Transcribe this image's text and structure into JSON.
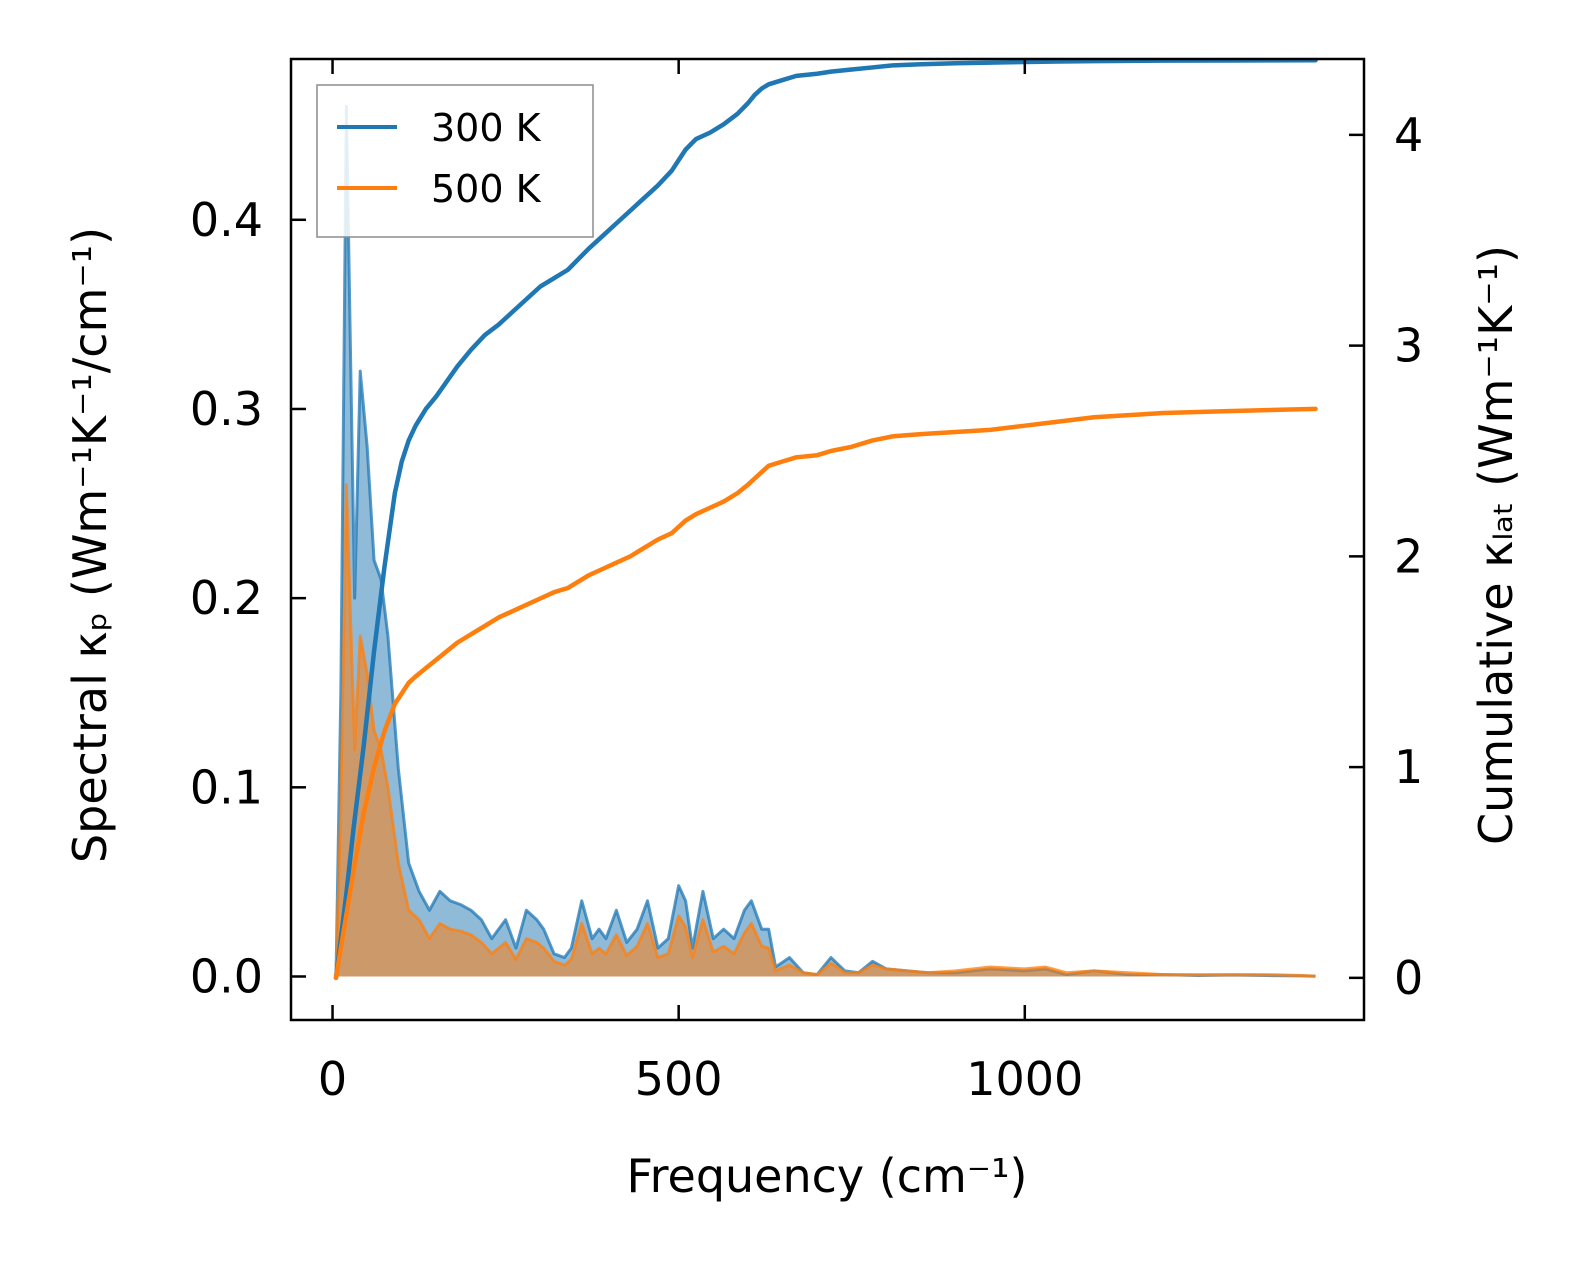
{
  "chart_data": {
    "type": "area",
    "xlabel": "Frequency (cm⁻¹)",
    "ylabel_left": "Spectral κₚ (Wm⁻¹K⁻¹/cm⁻¹)",
    "ylabel_right": "Cumulative κₗₐₜ (Wm⁻¹K⁻¹)",
    "xlim": [
      -60,
      1490
    ],
    "ylim_left": [
      -0.023,
      0.485
    ],
    "ylim_right": [
      -0.2,
      4.36
    ],
    "x_ticks": [
      0,
      500,
      1000
    ],
    "x_tick_labels": [
      "0",
      "500",
      "1000"
    ],
    "y_left_ticks": [
      0.0,
      0.1,
      0.2,
      0.3,
      0.4
    ],
    "y_left_tick_labels": [
      "0.0",
      "0.1",
      "0.2",
      "0.3",
      "0.4"
    ],
    "y_right_ticks": [
      0,
      1,
      2,
      3,
      4
    ],
    "y_right_tick_labels": [
      "0",
      "1",
      "2",
      "3",
      "4"
    ],
    "legend": {
      "position": "top-left",
      "entries": [
        "300 K",
        "500 K"
      ]
    },
    "series": [
      {
        "name": "300 K",
        "color": "#1f77b4",
        "spectral": {
          "x": [
            5,
            12,
            20,
            25,
            32,
            40,
            50,
            60,
            70,
            80,
            95,
            110,
            125,
            140,
            155,
            170,
            185,
            200,
            215,
            230,
            250,
            265,
            280,
            295,
            305,
            320,
            335,
            345,
            360,
            375,
            385,
            395,
            410,
            425,
            440,
            455,
            470,
            485,
            500,
            510,
            520,
            535,
            550,
            565,
            580,
            595,
            605,
            620,
            630,
            640,
            660,
            680,
            700,
            720,
            740,
            760,
            780,
            800,
            830,
            860,
            900,
            950,
            1000,
            1030,
            1060,
            1100,
            1150,
            1200,
            1250,
            1300,
            1350,
            1400,
            1420
          ],
          "y": [
            0.0,
            0.15,
            0.46,
            0.35,
            0.2,
            0.32,
            0.28,
            0.22,
            0.21,
            0.18,
            0.11,
            0.06,
            0.045,
            0.035,
            0.045,
            0.04,
            0.038,
            0.035,
            0.03,
            0.02,
            0.03,
            0.015,
            0.035,
            0.03,
            0.025,
            0.012,
            0.01,
            0.015,
            0.04,
            0.02,
            0.025,
            0.02,
            0.035,
            0.018,
            0.025,
            0.04,
            0.015,
            0.02,
            0.048,
            0.04,
            0.015,
            0.045,
            0.02,
            0.025,
            0.02,
            0.035,
            0.04,
            0.025,
            0.025,
            0.005,
            0.01,
            0.002,
            0.001,
            0.01,
            0.003,
            0.002,
            0.008,
            0.004,
            0.003,
            0.002,
            0.002,
            0.004,
            0.003,
            0.004,
            0.001,
            0.003,
            0.001,
            0.001,
            0.0005,
            0.0008,
            0.0005,
            0.0003,
            0.0001
          ]
        },
        "cumulative": {
          "x": [
            5,
            20,
            30,
            45,
            60,
            75,
            90,
            100,
            110,
            120,
            135,
            150,
            165,
            180,
            200,
            220,
            240,
            260,
            280,
            300,
            320,
            340,
            355,
            370,
            390,
            410,
            430,
            450,
            470,
            490,
            500,
            510,
            525,
            545,
            565,
            585,
            600,
            610,
            620,
            630,
            650,
            670,
            700,
            720,
            750,
            780,
            810,
            850,
            900,
            950,
            1000,
            1050,
            1100,
            1150,
            1200,
            1300,
            1420
          ],
          "y": [
            0.0,
            0.4,
            0.7,
            1.1,
            1.55,
            1.95,
            2.3,
            2.45,
            2.55,
            2.62,
            2.7,
            2.76,
            2.83,
            2.9,
            2.98,
            3.05,
            3.1,
            3.16,
            3.22,
            3.28,
            3.32,
            3.36,
            3.41,
            3.46,
            3.52,
            3.58,
            3.64,
            3.7,
            3.76,
            3.83,
            3.88,
            3.93,
            3.98,
            4.01,
            4.05,
            4.1,
            4.15,
            4.19,
            4.22,
            4.24,
            4.26,
            4.28,
            4.29,
            4.3,
            4.31,
            4.32,
            4.33,
            4.335,
            4.34,
            4.343,
            4.346,
            4.348,
            4.35,
            4.351,
            4.352,
            4.353,
            4.354
          ]
        }
      },
      {
        "name": "500 K",
        "color": "#ff7f0e",
        "spectral": {
          "x": [
            5,
            12,
            20,
            25,
            32,
            40,
            50,
            60,
            70,
            80,
            95,
            110,
            125,
            140,
            155,
            170,
            185,
            200,
            215,
            230,
            250,
            265,
            280,
            295,
            305,
            320,
            335,
            345,
            360,
            375,
            385,
            395,
            410,
            425,
            440,
            455,
            470,
            485,
            500,
            510,
            520,
            535,
            550,
            565,
            580,
            595,
            605,
            620,
            630,
            640,
            660,
            680,
            700,
            720,
            740,
            760,
            780,
            800,
            830,
            860,
            900,
            950,
            1000,
            1030,
            1060,
            1100,
            1150,
            1200,
            1250,
            1300,
            1350,
            1400,
            1420
          ],
          "y": [
            0.0,
            0.09,
            0.26,
            0.2,
            0.12,
            0.18,
            0.16,
            0.13,
            0.12,
            0.1,
            0.06,
            0.035,
            0.03,
            0.02,
            0.028,
            0.025,
            0.024,
            0.022,
            0.018,
            0.012,
            0.018,
            0.009,
            0.02,
            0.018,
            0.015,
            0.008,
            0.006,
            0.009,
            0.028,
            0.012,
            0.015,
            0.012,
            0.022,
            0.011,
            0.016,
            0.028,
            0.01,
            0.012,
            0.032,
            0.026,
            0.01,
            0.03,
            0.013,
            0.016,
            0.012,
            0.023,
            0.028,
            0.016,
            0.015,
            0.003,
            0.006,
            0.002,
            0.001,
            0.007,
            0.002,
            0.002,
            0.006,
            0.004,
            0.003,
            0.002,
            0.003,
            0.005,
            0.004,
            0.005,
            0.002,
            0.003,
            0.002,
            0.001,
            0.001,
            0.001,
            0.001,
            0.0005,
            0.0002
          ]
        },
        "cumulative": {
          "x": [
            5,
            20,
            30,
            45,
            60,
            75,
            90,
            100,
            110,
            120,
            135,
            150,
            165,
            180,
            200,
            220,
            240,
            260,
            280,
            300,
            320,
            340,
            355,
            370,
            390,
            410,
            430,
            450,
            470,
            490,
            500,
            510,
            525,
            545,
            565,
            585,
            600,
            610,
            620,
            630,
            650,
            670,
            700,
            720,
            750,
            780,
            810,
            850,
            900,
            950,
            1000,
            1050,
            1100,
            1150,
            1200,
            1300,
            1420
          ],
          "y": [
            0.0,
            0.3,
            0.5,
            0.78,
            1.0,
            1.17,
            1.3,
            1.35,
            1.4,
            1.43,
            1.47,
            1.51,
            1.55,
            1.59,
            1.63,
            1.67,
            1.71,
            1.74,
            1.77,
            1.8,
            1.83,
            1.85,
            1.88,
            1.91,
            1.94,
            1.97,
            2.0,
            2.04,
            2.08,
            2.11,
            2.14,
            2.17,
            2.2,
            2.23,
            2.26,
            2.3,
            2.34,
            2.37,
            2.4,
            2.43,
            2.45,
            2.47,
            2.48,
            2.5,
            2.52,
            2.55,
            2.57,
            2.58,
            2.59,
            2.6,
            2.62,
            2.64,
            2.66,
            2.67,
            2.68,
            2.69,
            2.7
          ]
        }
      }
    ]
  }
}
